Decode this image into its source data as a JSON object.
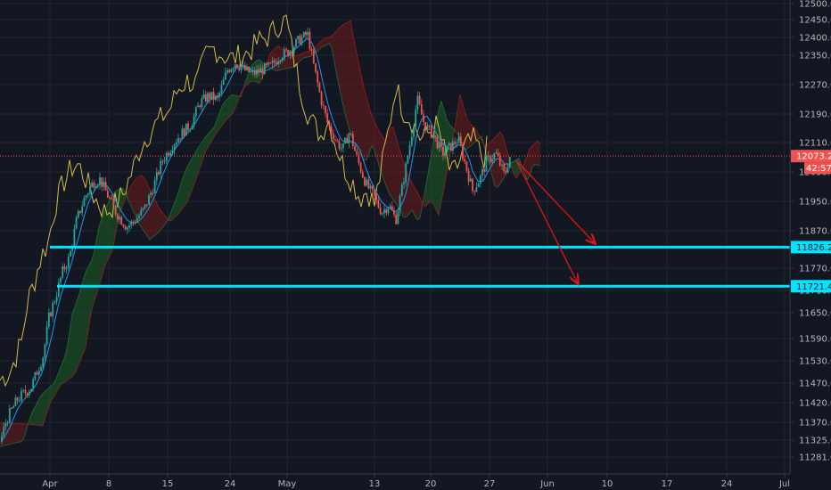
{
  "chart_data": {
    "type": "candlestick",
    "price_axis": {
      "ticks": [
        12500.0,
        12450.0,
        12400.0,
        12350.0,
        12270.0,
        12190.0,
        12110.0,
        12030.0,
        11950.0,
        11870.0,
        11770.0,
        11710.0,
        11650.0,
        11590.0,
        11530.0,
        11470.0,
        11420.0,
        11370.0,
        11325.0,
        11281.0
      ],
      "tick_labels": [
        "12500.0",
        "12450.0",
        "12400.0",
        "12350.0",
        "12270.0",
        "12190.0",
        "12110.0",
        "12030.0",
        "11950.0",
        "11870.0",
        "11770.0",
        "11710.0",
        "11650.0",
        "11590.0",
        "11530.0",
        "11470.0",
        "11420.0",
        "11370.0",
        "11325.0",
        "11281.0"
      ]
    },
    "time_axis": {
      "labels": [
        "Apr",
        "8",
        "15",
        "24",
        "May",
        "13",
        "20",
        "27",
        "Jun",
        "10",
        "17",
        "24",
        "Jul"
      ]
    },
    "current_price": {
      "value": 12073.2,
      "label": "12073.2",
      "countdown": "42:57",
      "color": "#ef5350"
    },
    "horizontal_levels": [
      {
        "value": 11826.2,
        "label": "11826.2",
        "color": "#00e5ff"
      },
      {
        "value": 11721.4,
        "label": "11721.4",
        "color": "#00e5ff"
      }
    ],
    "projection_arrows_color": "#e0141e",
    "colors": {
      "background": "#131722",
      "up": "#26a69a",
      "down": "#ef5350",
      "lagging_span": "#e8cc4e",
      "conversion_line": "#2196f3",
      "cloud_bull": "#1b5e20",
      "cloud_bear": "#6d1b1b"
    }
  }
}
